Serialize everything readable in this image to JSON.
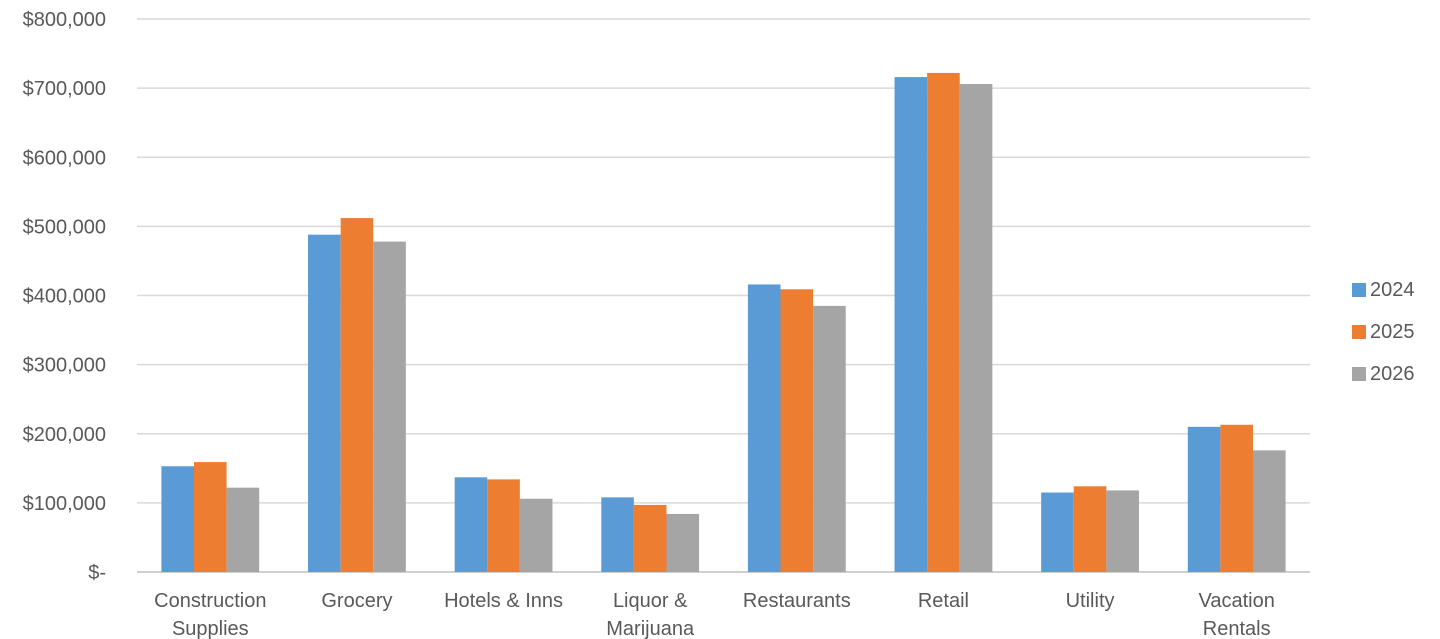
{
  "chart_data": {
    "type": "bar",
    "title": "",
    "xlabel": "",
    "ylabel": "",
    "ylim": [
      0,
      800000
    ],
    "y_ticks": [
      0,
      100000,
      200000,
      300000,
      400000,
      500000,
      600000,
      700000,
      800000
    ],
    "y_tick_labels": [
      "$-",
      "$100,000",
      "$200,000",
      "$300,000",
      "$400,000",
      "$500,000",
      "$600,000",
      "$700,000",
      "$800,000"
    ],
    "grid": true,
    "legend_position": "right",
    "categories": [
      [
        "Construction",
        "Supplies"
      ],
      [
        "Grocery"
      ],
      [
        "Hotels & Inns"
      ],
      [
        "Liquor &",
        "Marijuana"
      ],
      [
        "Restaurants"
      ],
      [
        "Retail"
      ],
      [
        "Utility"
      ],
      [
        "Vacation",
        "Rentals"
      ]
    ],
    "series": [
      {
        "name": "2024",
        "color": "#5b9bd5",
        "values": [
          153000,
          488000,
          137000,
          108000,
          416000,
          716000,
          115000,
          210000
        ]
      },
      {
        "name": "2025",
        "color": "#ed7d31",
        "values": [
          159000,
          512000,
          134000,
          97000,
          409000,
          722000,
          124000,
          213000
        ]
      },
      {
        "name": "2026",
        "color": "#a5a5a5",
        "values": [
          122000,
          478000,
          106000,
          84000,
          385000,
          706000,
          118000,
          176000
        ]
      }
    ]
  }
}
